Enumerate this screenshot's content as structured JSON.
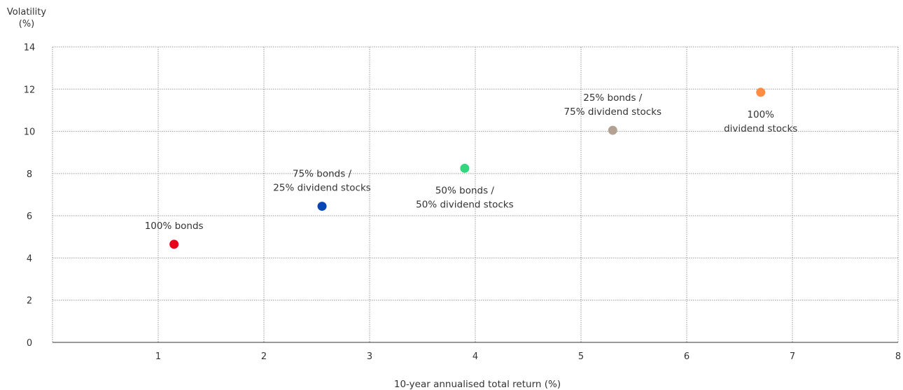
{
  "chart_data": {
    "type": "scatter",
    "title": "",
    "ylabel_lines": [
      "Volatility",
      "(%)"
    ],
    "xlabel": "10-year annualised total return (%)",
    "xlim": [
      0,
      8
    ],
    "ylim": [
      0,
      14
    ],
    "xticks": [
      1,
      2,
      3,
      4,
      5,
      6,
      7,
      8
    ],
    "yticks": [
      0,
      2,
      4,
      6,
      8,
      10,
      12,
      14
    ],
    "grid": true,
    "points": [
      {
        "label_lines": [
          "100% bonds"
        ],
        "x": 1.15,
        "y": 4.65,
        "color": "#e8001c",
        "label_pos": "above"
      },
      {
        "label_lines": [
          "75% bonds /",
          "25% dividend stocks"
        ],
        "x": 2.55,
        "y": 6.45,
        "color": "#0a45b5",
        "label_pos": "above"
      },
      {
        "label_lines": [
          "50% bonds /",
          "50% dividend stocks"
        ],
        "x": 3.9,
        "y": 8.25,
        "color": "#33d67e",
        "label_pos": "below"
      },
      {
        "label_lines": [
          "25% bonds /",
          "75% dividend stocks"
        ],
        "x": 5.3,
        "y": 10.05,
        "color": "#b3a293",
        "label_pos": "above"
      },
      {
        "label_lines": [
          "100%",
          "dividend stocks"
        ],
        "x": 6.7,
        "y": 11.85,
        "color": "#ff8c42",
        "label_pos": "below"
      }
    ]
  }
}
